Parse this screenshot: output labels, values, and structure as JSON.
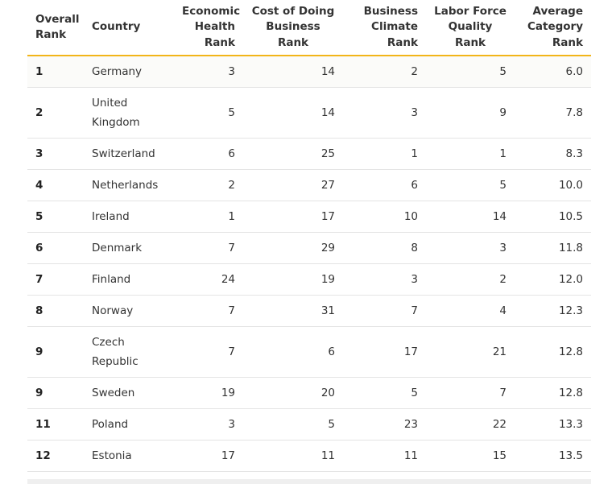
{
  "table": {
    "headers": [
      "Overall Rank",
      "Country",
      "Economic Health Rank",
      "Cost of Doing Business Rank",
      "Business Climate Rank",
      "Labor Force Quality Rank",
      "Average Category Rank"
    ],
    "rows": [
      {
        "rank": "1",
        "country": "Germany",
        "economic": "3",
        "cost": "14",
        "climate": "2",
        "labor": "5",
        "average": "6.0"
      },
      {
        "rank": "2",
        "country": "United Kingdom",
        "economic": "5",
        "cost": "14",
        "climate": "3",
        "labor": "9",
        "average": "7.8"
      },
      {
        "rank": "3",
        "country": "Switzerland",
        "economic": "6",
        "cost": "25",
        "climate": "1",
        "labor": "1",
        "average": "8.3"
      },
      {
        "rank": "4",
        "country": "Netherlands",
        "economic": "2",
        "cost": "27",
        "climate": "6",
        "labor": "5",
        "average": "10.0"
      },
      {
        "rank": "5",
        "country": "Ireland",
        "economic": "1",
        "cost": "17",
        "climate": "10",
        "labor": "14",
        "average": "10.5"
      },
      {
        "rank": "6",
        "country": "Denmark",
        "economic": "7",
        "cost": "29",
        "climate": "8",
        "labor": "3",
        "average": "11.8"
      },
      {
        "rank": "7",
        "country": "Finland",
        "economic": "24",
        "cost": "19",
        "climate": "3",
        "labor": "2",
        "average": "12.0"
      },
      {
        "rank": "8",
        "country": "Norway",
        "economic": "7",
        "cost": "31",
        "climate": "7",
        "labor": "4",
        "average": "12.3"
      },
      {
        "rank": "9",
        "country": "Czech Republic",
        "economic": "7",
        "cost": "6",
        "climate": "17",
        "labor": "21",
        "average": "12.8"
      },
      {
        "rank": "9",
        "country": "Sweden",
        "economic": "19",
        "cost": "20",
        "climate": "5",
        "labor": "7",
        "average": "12.8"
      },
      {
        "rank": "11",
        "country": "Poland",
        "economic": "3",
        "cost": "5",
        "climate": "23",
        "labor": "22",
        "average": "13.3"
      },
      {
        "rank": "12",
        "country": "Estonia",
        "economic": "17",
        "cost": "11",
        "climate": "11",
        "labor": "15",
        "average": "13.5"
      }
    ]
  },
  "colors": {
    "header_rule": "#f2b519",
    "row_rule": "#e4e4e4",
    "text": "#333333"
  }
}
